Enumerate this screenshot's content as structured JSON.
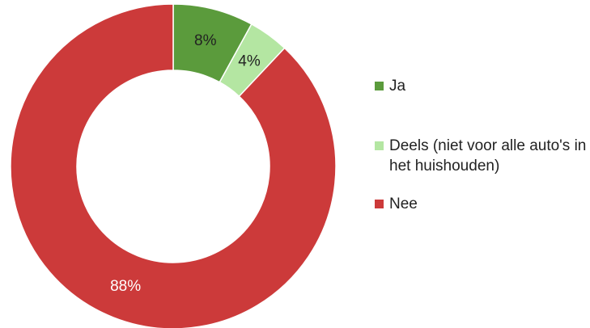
{
  "chart_data": {
    "type": "donut",
    "categories": [
      "Ja",
      "Deels (niet voor alle auto's in het huishouden)",
      "Nee"
    ],
    "values": [
      8,
      4,
      88
    ],
    "value_labels": [
      "8%",
      "4%",
      "88%"
    ],
    "colors": [
      "#5b9b3c",
      "#b4e6a2",
      "#cc3a3a"
    ],
    "label_colors": [
      "#222222",
      "#222222",
      "#ffffff"
    ],
    "legend": "right"
  }
}
